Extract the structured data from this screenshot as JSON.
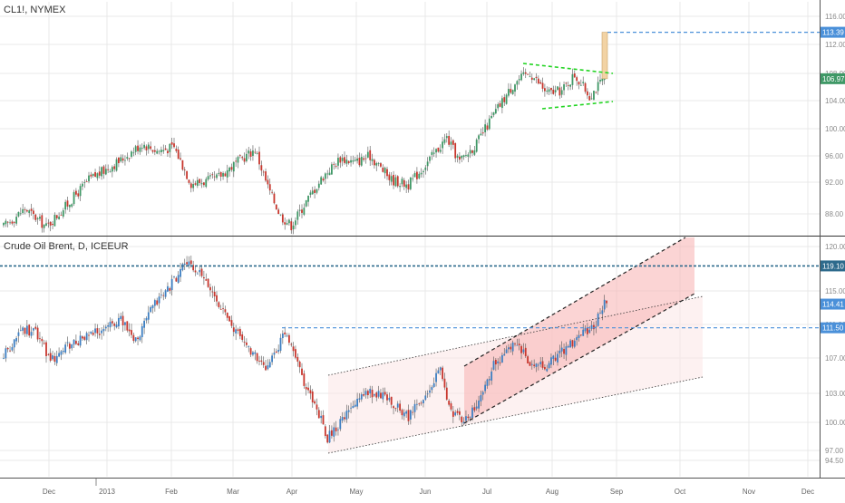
{
  "colors": {
    "up": "#3f9866",
    "down": "#c8362d",
    "blue_up": "#3d7fc2",
    "grid": "#e8e8e8",
    "axis_text": "#8a8a8a",
    "marker_blue": "#4a90d9",
    "marker_dark": "#2d6a8c",
    "green_line": "#22d422",
    "channel_fill": "#f8b8b8",
    "channel_fill_light": "#fce6e6",
    "breakout": "#f2d3a4"
  },
  "chart_data": [
    {
      "type": "candlestick",
      "title": "CL1!, NYMEX",
      "ylim": [
        85.4,
        117.6
      ],
      "y_ticks": [
        "88.00",
        "92.00",
        "96.00",
        "100.00",
        "104.00",
        "108.00",
        "112.00",
        "116.00"
      ],
      "price_labels": [
        {
          "text": "113.39",
          "value": 113.39,
          "style": "blue"
        },
        {
          "text": "106.97",
          "value": 106.97,
          "style": "green"
        }
      ],
      "anchors": [
        [
          0,
          86.5
        ],
        [
          10,
          89
        ],
        [
          20,
          86.5
        ],
        [
          30,
          89.6
        ],
        [
          40,
          93
        ],
        [
          55,
          95.7
        ],
        [
          65,
          98
        ],
        [
          72,
          97
        ],
        [
          80,
          97.5
        ],
        [
          88,
          92.5
        ],
        [
          95,
          92.8
        ],
        [
          100,
          93.2
        ],
        [
          110,
          95.5
        ],
        [
          118,
          97.2
        ],
        [
          124,
          92
        ],
        [
          130,
          88
        ],
        [
          135,
          86.7
        ],
        [
          142,
          90
        ],
        [
          150,
          93.5
        ],
        [
          158,
          96
        ],
        [
          165,
          95.4
        ],
        [
          172,
          96.3
        ],
        [
          182,
          93
        ],
        [
          190,
          92.3
        ],
        [
          198,
          95.1
        ],
        [
          208,
          98.8
        ],
        [
          214,
          95.5
        ],
        [
          222,
          98
        ],
        [
          230,
          102
        ],
        [
          240,
          106.5
        ],
        [
          247,
          107.8
        ],
        [
          255,
          105
        ],
        [
          262,
          105.3
        ],
        [
          268,
          107.5
        ],
        [
          275,
          104.6
        ],
        [
          282,
          107
        ]
      ],
      "breakout": {
        "from": 106.97,
        "to": 113.39
      }
    },
    {
      "type": "candlestick",
      "title": "Crude Oil Brent, D, ICEEUR",
      "ylim": [
        93.2,
        122.6
      ],
      "y_ticks": [
        "94.50",
        "97.00",
        "100.00",
        "103.00",
        "107.00",
        "111.00",
        "115.00",
        "120.00"
      ],
      "price_labels": [
        {
          "text": "119.10",
          "value": 119.1,
          "style": "dark"
        },
        {
          "text": "114.41",
          "value": 114.41,
          "style": "blue"
        },
        {
          "text": "111.50",
          "value": 111.5,
          "style": "blue"
        }
      ],
      "anchors": [
        [
          0,
          108
        ],
        [
          8,
          111.3
        ],
        [
          15,
          111
        ],
        [
          22,
          107.5
        ],
        [
          30,
          109.2
        ],
        [
          40,
          110.5
        ],
        [
          55,
          112.5
        ],
        [
          62,
          110
        ],
        [
          70,
          114
        ],
        [
          78,
          116.5
        ],
        [
          85,
          119.5
        ],
        [
          92,
          118
        ],
        [
          100,
          115
        ],
        [
          106,
          112
        ],
        [
          112,
          110
        ],
        [
          118,
          108
        ],
        [
          122,
          106.5
        ],
        [
          128,
          108.5
        ],
        [
          132,
          111
        ],
        [
          136,
          109
        ],
        [
          142,
          104
        ],
        [
          148,
          101
        ],
        [
          152,
          98
        ],
        [
          160,
          100.5
        ],
        [
          170,
          103.8
        ],
        [
          180,
          103
        ],
        [
          190,
          100.5
        ],
        [
          195,
          102.5
        ],
        [
          200,
          104
        ],
        [
          205,
          106.5
        ],
        [
          210,
          101
        ],
        [
          215,
          100.2
        ],
        [
          222,
          101.5
        ],
        [
          230,
          107
        ],
        [
          240,
          109.5
        ],
        [
          248,
          107
        ],
        [
          255,
          107
        ],
        [
          262,
          108.5
        ],
        [
          270,
          110.5
        ],
        [
          277,
          111.5
        ],
        [
          282,
          114.41
        ]
      ]
    }
  ],
  "x_axis": {
    "labels": [
      "Dec",
      "2013",
      "Feb",
      "Mar",
      "Apr",
      "May",
      "Jun",
      "Jul",
      "Aug",
      "Sep",
      "Oct",
      "Nov",
      "Dec"
    ]
  }
}
